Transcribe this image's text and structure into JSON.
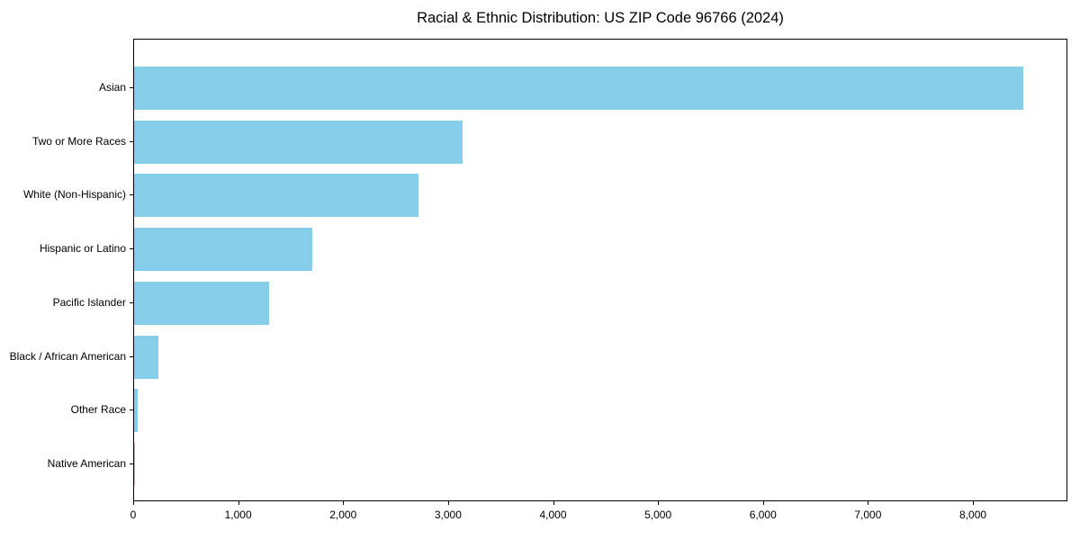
{
  "chart_data": {
    "type": "bar",
    "orientation": "horizontal",
    "title": "Racial & Ethnic Distribution: US ZIP Code 96766 (2024)",
    "categories": [
      "Asian",
      "Two or More Races",
      "White (Non-Hispanic)",
      "Hispanic or Latino",
      "Pacific Islander",
      "Black / African American",
      "Other Race",
      "Native American"
    ],
    "values": [
      8475,
      3130,
      2710,
      1700,
      1285,
      230,
      35,
      5
    ],
    "xlabel": "",
    "ylabel": "",
    "xlim": [
      0,
      8900
    ],
    "xticks": [
      0,
      1000,
      2000,
      3000,
      4000,
      5000,
      6000,
      7000,
      8000
    ],
    "xtick_labels": [
      "0",
      "1,000",
      "2,000",
      "3,000",
      "4,000",
      "5,000",
      "6,000",
      "7,000",
      "8,000"
    ],
    "grid": false,
    "legend": "none",
    "bar_color": "#87CEEB",
    "background_color": "#ffffff",
    "text_color": "#000000"
  }
}
